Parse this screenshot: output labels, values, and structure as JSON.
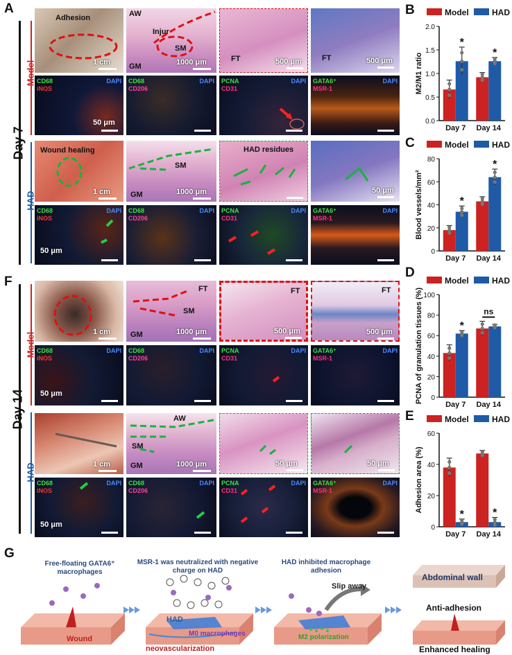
{
  "panel_letters": {
    "a": "A",
    "b": "B",
    "c": "C",
    "d": "D",
    "e": "E",
    "f": "F",
    "g": "G"
  },
  "rows": {
    "day7": "Day 7",
    "day14": "Day 14",
    "model": "Model",
    "had": "HAD"
  },
  "tiles": {
    "adhesion": "Adhesion",
    "injur": "Injur",
    "wound_healing": "Wound healing",
    "had_residues": "HAD residues",
    "aw": "AW",
    "sm": "SM",
    "gm": "GM",
    "ft": "FT"
  },
  "stains": {
    "cd68": "CD68",
    "inos": "iNOS",
    "dapi": "DAPI",
    "cd206": "CD206",
    "pcna": "PCNA",
    "cd31": "CD31",
    "gata6": "GATA6⁺",
    "msr1": "MSR-1"
  },
  "scales": {
    "cm1": "1 cm",
    "um1000": "1000 μm",
    "um500": "500 μm",
    "um50": "50 μm"
  },
  "colors": {
    "model": "#cc2222",
    "had": "#1f5aa6"
  },
  "chart_data": [
    {
      "type": "bar",
      "panel": "B",
      "categories": [
        "Day 7",
        "Day 14"
      ],
      "series": [
        {
          "name": "Model",
          "values": [
            0.66,
            0.92
          ]
        },
        {
          "name": "HAD",
          "values": [
            1.26,
            1.26
          ]
        }
      ],
      "errors": [
        [
          0.2,
          0.1
        ],
        [
          0.3,
          0.08
        ]
      ],
      "sig": [
        "*",
        "*"
      ],
      "ylabel": "M2/M1 ratio",
      "ylim": [
        0.0,
        2.0
      ],
      "yticks": [
        "0.0",
        "0.5",
        "1.0",
        "1.5",
        "2.0"
      ]
    },
    {
      "type": "bar",
      "panel": "C",
      "categories": [
        "Day 7",
        "Day 14"
      ],
      "series": [
        {
          "name": "Model",
          "values": [
            18,
            43
          ]
        },
        {
          "name": "HAD",
          "values": [
            34,
            64
          ]
        }
      ],
      "errors": [
        [
          4,
          4
        ],
        [
          5,
          7
        ]
      ],
      "sig": [
        "*",
        "*"
      ],
      "ylabel": "Blood vessels/mm²",
      "ylim": [
        0,
        80
      ],
      "yticks": [
        "0",
        "20",
        "40",
        "60",
        "80"
      ]
    },
    {
      "type": "bar",
      "panel": "D",
      "categories": [
        "Day 7",
        "Day 14"
      ],
      "series": [
        {
          "name": "Model",
          "values": [
            43,
            67
          ]
        },
        {
          "name": "HAD",
          "values": [
            62,
            69
          ]
        }
      ],
      "errors": [
        [
          8,
          7
        ],
        [
          3,
          2
        ]
      ],
      "sig": [
        "*",
        "ns"
      ],
      "ylabel": "PCNA of granulation tissues (%)",
      "ylim": [
        0,
        100
      ],
      "yticks": [
        "0",
        "20",
        "40",
        "60",
        "80",
        "100"
      ]
    },
    {
      "type": "bar",
      "panel": "E",
      "categories": [
        "Day 7",
        "Day 14"
      ],
      "series": [
        {
          "name": "Model",
          "values": [
            38,
            47
          ]
        },
        {
          "name": "HAD",
          "values": [
            3,
            3
          ]
        }
      ],
      "errors": [
        [
          6,
          2
        ],
        [
          2,
          3
        ]
      ],
      "sig": [
        "*",
        "*"
      ],
      "ylabel": "Adhesion area (%)",
      "ylim": [
        0,
        60
      ],
      "yticks": [
        "0",
        "20",
        "40",
        "60"
      ]
    }
  ],
  "schematic": {
    "step1": "Free-floating GATA6⁺ macrophages",
    "step2": "MSR-1 was neutralized with negative charge on HAD",
    "step3": "HAD inhibited macrophage adhesion",
    "wound": "Wound",
    "had": "HAD",
    "m0": "M0 macrophages",
    "neo": "neovascularization",
    "slip": "Slip away",
    "m2": "M2 polarization",
    "abdominal_wall": "Abdominal wall",
    "anti_adhesion": "Anti-adhesion",
    "enhanced": "Enhanced healing"
  }
}
